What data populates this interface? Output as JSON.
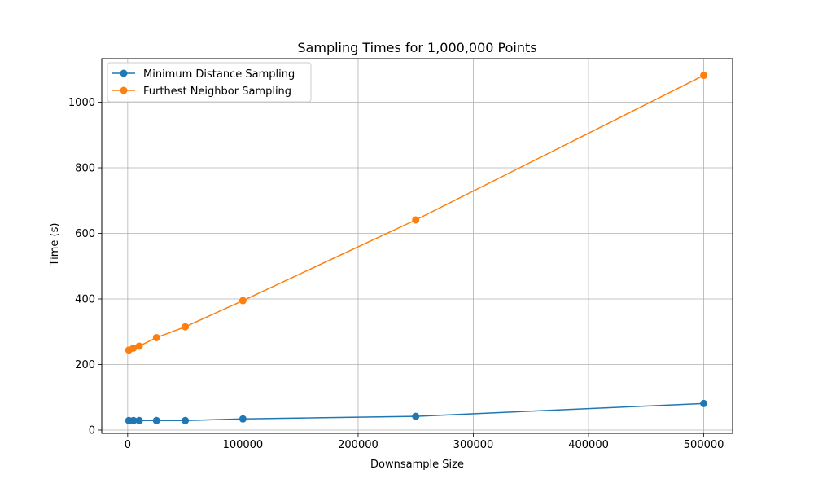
{
  "chart_data": {
    "type": "line",
    "title": "Sampling Times for 1,000,000 Points",
    "xlabel": "Downsample Size",
    "ylabel": "Time (s)",
    "xlim": [
      -22500,
      525000
    ],
    "ylim": [
      -10,
      1133
    ],
    "xticks": [
      0,
      100000,
      200000,
      300000,
      400000,
      500000
    ],
    "yticks": [
      0,
      200,
      400,
      600,
      800,
      1000
    ],
    "grid": true,
    "legend_position": "upper-left",
    "x": [
      1000,
      5000,
      10000,
      25000,
      50000,
      100000,
      250000,
      500000
    ],
    "series": [
      {
        "name": "Minimum Distance Sampling",
        "color": "#1f77b4",
        "marker": "circle",
        "values": [
          29,
          29,
          29,
          29,
          29,
          34,
          42,
          81
        ]
      },
      {
        "name": "Furthest Neighbor Sampling",
        "color": "#ff7f0e",
        "marker": "circle",
        "values": [
          244,
          250,
          256,
          282,
          315,
          395,
          641,
          1082
        ]
      }
    ]
  }
}
